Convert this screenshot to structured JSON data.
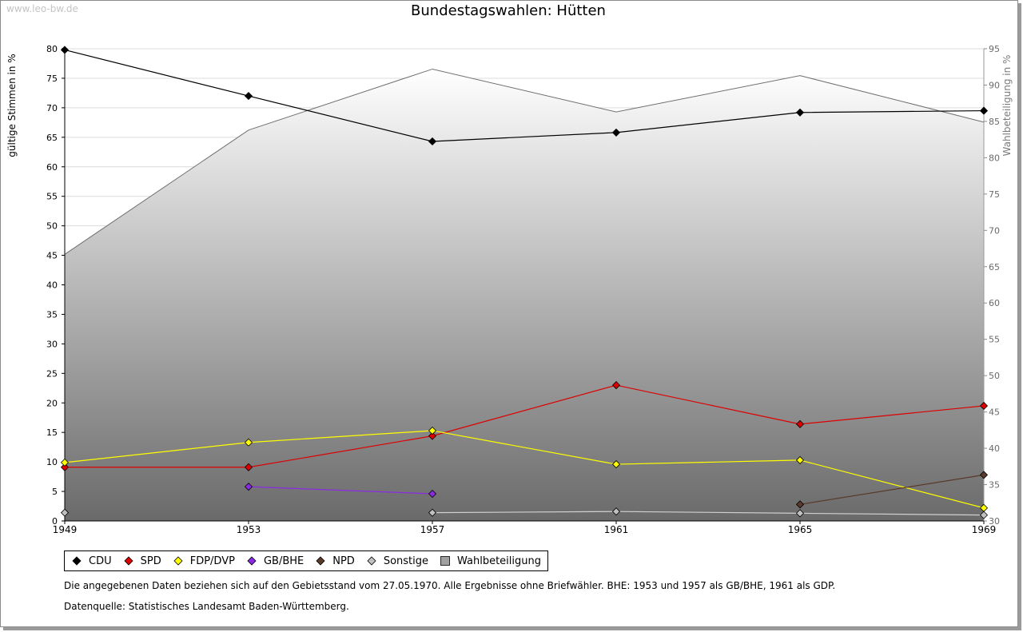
{
  "watermark": "www.leo-bw.de",
  "legend": [
    {
      "label": "CDU",
      "color": "#000000",
      "shape": "diamond"
    },
    {
      "label": "SPD",
      "color": "#dd0000",
      "shape": "diamond"
    },
    {
      "label": "FDP/DVP",
      "color": "#ffff00",
      "shape": "diamond"
    },
    {
      "label": "GB/BHE",
      "color": "#8a2be2",
      "shape": "diamond"
    },
    {
      "label": "NPD",
      "color": "#5a3a2a",
      "shape": "diamond"
    },
    {
      "label": "Sonstige",
      "color": "#c0c0c0",
      "shape": "diamond"
    },
    {
      "label": "Wahlbeteiligung",
      "color": "#a0a0a0",
      "shape": "square"
    }
  ],
  "footnote": "Die angegebenen Daten beziehen sich auf den Gebietsstand vom 27.05.1970. Alle Ergebnisse ohne Briefwähler. BHE: 1953 und 1957 als GB/BHE, 1961 als GDP.",
  "source": "Datenquelle: Statistisches Landesamt Baden-Württemberg.",
  "chart_data": {
    "type": "line",
    "title": "Bundestagswahlen: Hütten",
    "xlabel": "",
    "ylabel": "gültige Stimmen in %",
    "ylabel_right": "Wahlbeteiligung in %",
    "x": [
      1949,
      1953,
      1957,
      1961,
      1965,
      1969
    ],
    "ylim": [
      0,
      80
    ],
    "yticks": [
      0,
      5,
      10,
      15,
      20,
      25,
      30,
      35,
      40,
      45,
      50,
      55,
      60,
      65,
      70,
      75,
      80
    ],
    "ylim_right": [
      30,
      95
    ],
    "yticks_right": [
      30,
      35,
      40,
      45,
      50,
      55,
      60,
      65,
      70,
      75,
      80,
      85,
      90,
      95
    ],
    "grid": true,
    "legend_position": "bottom",
    "series": [
      {
        "name": "CDU",
        "color": "#000000",
        "values": [
          79.8,
          72.0,
          64.3,
          65.8,
          69.2,
          69.5
        ]
      },
      {
        "name": "SPD",
        "color": "#dd0000",
        "values": [
          9.1,
          9.1,
          14.4,
          23.0,
          16.4,
          19.5
        ]
      },
      {
        "name": "FDP/DVP",
        "color": "#ffff00",
        "values": [
          9.9,
          13.3,
          15.3,
          9.6,
          10.3,
          2.2
        ]
      },
      {
        "name": "GB/BHE",
        "color": "#8a2be2",
        "values": [
          null,
          5.8,
          4.6,
          null,
          null,
          null
        ]
      },
      {
        "name": "NPD",
        "color": "#5a3a2a",
        "values": [
          null,
          null,
          null,
          null,
          2.8,
          7.8
        ]
      },
      {
        "name": "Sonstige",
        "color": "#c0c0c0",
        "values": [
          1.4,
          null,
          1.4,
          1.6,
          1.3,
          1.0
        ]
      }
    ],
    "turnout": {
      "name": "Wahlbeteiligung",
      "axis": "right",
      "type": "area",
      "values": [
        66.7,
        83.8,
        92.2,
        86.3,
        91.3,
        84.9
      ]
    }
  }
}
